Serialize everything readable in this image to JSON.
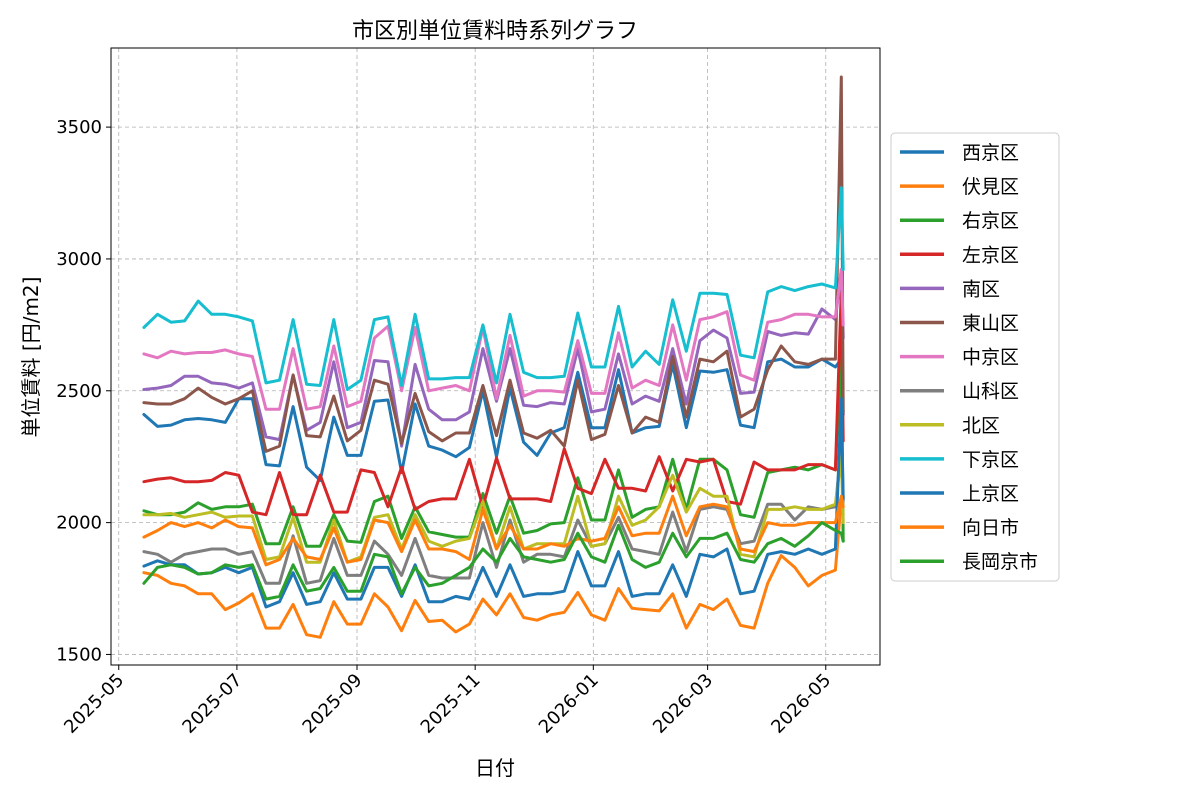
{
  "chart_data": {
    "type": "line",
    "title": "市区別単位賃料時系列グラフ",
    "xlabel": "日付",
    "ylabel": "単位賃料 [円/m2]",
    "ylim": [
      1460,
      3800
    ],
    "xlim": [
      "2025-04-27",
      "2026-05-29"
    ],
    "grid": true,
    "legend_position": "right",
    "y_ticks": [
      1500,
      2000,
      2500,
      3000,
      3500
    ],
    "x_ticks": [
      "2025-05-01",
      "2025-07-01",
      "2025-09-01",
      "2025-11-01",
      "2026-01-01",
      "2026-03-01",
      "2026-05-01"
    ],
    "x_tick_labels": [
      "2025-05",
      "2025-07",
      "2025-09",
      "2025-11",
      "2026-01",
      "2026-03",
      "2026-05"
    ],
    "x": [
      "2025-05-14",
      "2025-05-21",
      "2025-05-28",
      "2025-06-04",
      "2025-06-11",
      "2025-06-18",
      "2025-06-25",
      "2025-07-02",
      "2025-07-09",
      "2025-07-16",
      "2025-07-23",
      "2025-07-30",
      "2025-08-06",
      "2025-08-13",
      "2025-08-20",
      "2025-08-27",
      "2025-09-03",
      "2025-09-10",
      "2025-09-17",
      "2025-09-24",
      "2025-10-01",
      "2025-10-08",
      "2025-10-15",
      "2025-10-22",
      "2025-10-29",
      "2025-11-05",
      "2025-11-12",
      "2025-11-19",
      "2025-11-26",
      "2025-12-03",
      "2025-12-10",
      "2025-12-17",
      "2025-12-24",
      "2025-12-31",
      "2026-01-07",
      "2026-01-14",
      "2026-01-21",
      "2026-01-28",
      "2026-02-04",
      "2026-02-11",
      "2026-02-18",
      "2026-02-25",
      "2026-03-04",
      "2026-03-11",
      "2026-03-18",
      "2026-03-25",
      "2026-04-01",
      "2026-04-08",
      "2026-04-15",
      "2026-04-22",
      "2026-04-29",
      "2026-05-06",
      "2026-05-09",
      "2026-05-10"
    ],
    "series": [
      {
        "name": "西京区",
        "color": "#1f77b4",
        "values": [
          2410,
          2365,
          2370,
          2390,
          2395,
          2390,
          2380,
          2470,
          2470,
          2220,
          2215,
          2440,
          2210,
          2160,
          2400,
          2255,
          2255,
          2460,
          2465,
          2190,
          2450,
          2290,
          2275,
          2250,
          2285,
          2500,
          2250,
          2510,
          2305,
          2255,
          2340,
          2360,
          2570,
          2360,
          2360,
          2580,
          2340,
          2360,
          2365,
          2600,
          2360,
          2575,
          2570,
          2580,
          2370,
          2360,
          2610,
          2620,
          2590,
          2590,
          2620,
          2590,
          2620,
          2410
        ]
      },
      {
        "name": "伏見区",
        "color": "#ff7f0e",
        "values": [
          1810,
          1800,
          1770,
          1760,
          1730,
          1730,
          1670,
          1695,
          1730,
          1600,
          1600,
          1690,
          1575,
          1565,
          1700,
          1615,
          1615,
          1730,
          1680,
          1590,
          1705,
          1625,
          1630,
          1585,
          1615,
          1710,
          1650,
          1730,
          1640,
          1630,
          1650,
          1660,
          1735,
          1650,
          1630,
          1750,
          1675,
          1670,
          1665,
          1730,
          1600,
          1690,
          1670,
          1710,
          1610,
          1600,
          1770,
          1875,
          1830,
          1760,
          1800,
          1820,
          2090,
          2030
        ]
      },
      {
        "name": "右京区",
        "color": "#2ca02c",
        "values": [
          2045,
          2030,
          2030,
          2040,
          2075,
          2050,
          2060,
          2060,
          2070,
          1920,
          1920,
          2060,
          1910,
          1910,
          2030,
          1930,
          1925,
          2080,
          2100,
          1940,
          2060,
          1965,
          1955,
          1945,
          1945,
          2110,
          1960,
          2100,
          1960,
          1970,
          1995,
          2000,
          2170,
          2010,
          2010,
          2200,
          2020,
          2050,
          2060,
          2240,
          2050,
          2240,
          2240,
          2200,
          2030,
          2020,
          2190,
          2200,
          2210,
          2200,
          2220,
          2200,
          2680,
          1930
        ]
      },
      {
        "name": "左京区",
        "color": "#d62728",
        "values": [
          2155,
          2165,
          2170,
          2155,
          2155,
          2160,
          2190,
          2180,
          2040,
          2030,
          2190,
          2030,
          2030,
          2180,
          2040,
          2040,
          2200,
          2190,
          2060,
          2210,
          2050,
          2080,
          2090,
          2090,
          2240,
          2060,
          2245,
          2090,
          2090,
          2090,
          2080,
          2280,
          2130,
          2110,
          2240,
          2130,
          2130,
          2120,
          2250,
          2120,
          2240,
          2230,
          2240,
          2080,
          2070,
          2230,
          2200,
          2200,
          2200,
          2220,
          2220,
          2200,
          2880,
          2310
        ]
      },
      {
        "name": "南区",
        "color": "#9467bd",
        "values": [
          2505,
          2510,
          2520,
          2555,
          2555,
          2530,
          2525,
          2510,
          2530,
          2325,
          2315,
          2560,
          2350,
          2380,
          2610,
          2360,
          2380,
          2615,
          2610,
          2290,
          2600,
          2430,
          2390,
          2390,
          2420,
          2660,
          2460,
          2660,
          2445,
          2440,
          2455,
          2450,
          2660,
          2420,
          2430,
          2640,
          2450,
          2480,
          2460,
          2660,
          2450,
          2690,
          2730,
          2700,
          2490,
          2495,
          2725,
          2710,
          2720,
          2715,
          2810,
          2770,
          2960,
          2700
        ]
      },
      {
        "name": "東山区",
        "color": "#8c564b",
        "values": [
          2455,
          2450,
          2450,
          2470,
          2510,
          2475,
          2450,
          2470,
          2500,
          2270,
          2290,
          2560,
          2330,
          2325,
          2480,
          2310,
          2350,
          2540,
          2525,
          2300,
          2490,
          2345,
          2310,
          2340,
          2340,
          2520,
          2330,
          2540,
          2340,
          2320,
          2350,
          2290,
          2540,
          2315,
          2335,
          2520,
          2340,
          2400,
          2380,
          2630,
          2400,
          2620,
          2610,
          2650,
          2400,
          2430,
          2580,
          2670,
          2610,
          2600,
          2620,
          2620,
          3690,
          2420
        ]
      },
      {
        "name": "中京区",
        "color": "#e377c2",
        "values": [
          2640,
          2625,
          2650,
          2640,
          2645,
          2645,
          2655,
          2640,
          2630,
          2430,
          2430,
          2660,
          2430,
          2440,
          2670,
          2440,
          2460,
          2700,
          2745,
          2500,
          2740,
          2500,
          2510,
          2520,
          2500,
          2740,
          2470,
          2710,
          2480,
          2500,
          2500,
          2495,
          2690,
          2490,
          2490,
          2720,
          2510,
          2540,
          2520,
          2750,
          2540,
          2770,
          2780,
          2800,
          2560,
          2540,
          2760,
          2770,
          2790,
          2790,
          2780,
          2780,
          2960,
          2750
        ]
      },
      {
        "name": "山科区",
        "color": "#7f7f7f",
        "values": [
          1890,
          1880,
          1850,
          1880,
          1890,
          1900,
          1900,
          1880,
          1890,
          1770,
          1770,
          1950,
          1770,
          1780,
          1940,
          1800,
          1800,
          1930,
          1880,
          1800,
          1940,
          1800,
          1790,
          1790,
          1790,
          2000,
          1830,
          2010,
          1850,
          1880,
          1880,
          1870,
          2010,
          1910,
          1920,
          2020,
          1900,
          1890,
          1880,
          2040,
          1890,
          2050,
          2060,
          2050,
          1920,
          1930,
          2070,
          2070,
          2010,
          2060,
          2050,
          2060,
          2290,
          2080
        ]
      },
      {
        "name": "北区",
        "color": "#bcbd22",
        "values": [
          2030,
          2030,
          2035,
          2020,
          2030,
          2040,
          2020,
          2025,
          2025,
          1860,
          1870,
          2020,
          1850,
          1850,
          2010,
          1850,
          1870,
          2020,
          2030,
          1900,
          2030,
          1930,
          1910,
          1930,
          1940,
          2080,
          1900,
          2060,
          1900,
          1920,
          1920,
          1920,
          2100,
          1910,
          1920,
          2100,
          1990,
          2010,
          2060,
          2180,
          2040,
          2130,
          2100,
          2100,
          1880,
          1870,
          2050,
          2050,
          2060,
          2050,
          2050,
          2070,
          2250,
          2000
        ]
      },
      {
        "name": "下京区",
        "color": "#17becf",
        "values": [
          2740,
          2790,
          2760,
          2765,
          2840,
          2790,
          2790,
          2780,
          2765,
          2530,
          2540,
          2770,
          2525,
          2520,
          2770,
          2505,
          2540,
          2770,
          2780,
          2520,
          2790,
          2545,
          2545,
          2550,
          2550,
          2750,
          2530,
          2790,
          2570,
          2550,
          2550,
          2555,
          2795,
          2590,
          2590,
          2820,
          2590,
          2650,
          2600,
          2845,
          2650,
          2870,
          2870,
          2865,
          2635,
          2625,
          2875,
          2895,
          2880,
          2895,
          2905,
          2890,
          3270,
          2960
        ]
      },
      {
        "name": "上京区",
        "color": "#1f77b4",
        "values": [
          1835,
          1855,
          1840,
          1840,
          1805,
          1810,
          1830,
          1810,
          1830,
          1680,
          1700,
          1810,
          1690,
          1700,
          1810,
          1710,
          1710,
          1830,
          1830,
          1720,
          1840,
          1700,
          1700,
          1720,
          1710,
          1830,
          1720,
          1840,
          1720,
          1730,
          1730,
          1740,
          1890,
          1760,
          1760,
          1890,
          1720,
          1730,
          1730,
          1840,
          1720,
          1880,
          1870,
          1900,
          1730,
          1740,
          1880,
          1890,
          1880,
          1900,
          1880,
          1900,
          2470,
          2090
        ]
      },
      {
        "name": "向日市",
        "color": "#ff7f0e",
        "values": [
          1945,
          1970,
          2000,
          1985,
          2000,
          1980,
          2010,
          1985,
          1980,
          1840,
          1860,
          1940,
          1870,
          1860,
          1980,
          1850,
          1860,
          2010,
          2000,
          1890,
          2010,
          1900,
          1900,
          1890,
          1860,
          2050,
          1900,
          1990,
          1900,
          1900,
          1920,
          1910,
          1940,
          1930,
          1940,
          2060,
          1950,
          1960,
          1960,
          2100,
          1950,
          2060,
          2070,
          2060,
          1900,
          1890,
          2000,
          1990,
          1990,
          2000,
          2000,
          2000,
          2100,
          2060
        ]
      },
      {
        "name": "長岡京市",
        "color": "#2ca02c",
        "values": [
          1770,
          1830,
          1840,
          1830,
          1805,
          1810,
          1840,
          1830,
          1840,
          1710,
          1720,
          1840,
          1740,
          1750,
          1830,
          1740,
          1740,
          1880,
          1870,
          1730,
          1830,
          1760,
          1770,
          1800,
          1830,
          1900,
          1850,
          1940,
          1870,
          1860,
          1850,
          1860,
          1960,
          1870,
          1850,
          1990,
          1860,
          1830,
          1850,
          1960,
          1870,
          1940,
          1940,
          1960,
          1860,
          1850,
          1920,
          1940,
          1910,
          1950,
          2000,
          1970,
          1960,
          1930
        ]
      }
    ]
  }
}
